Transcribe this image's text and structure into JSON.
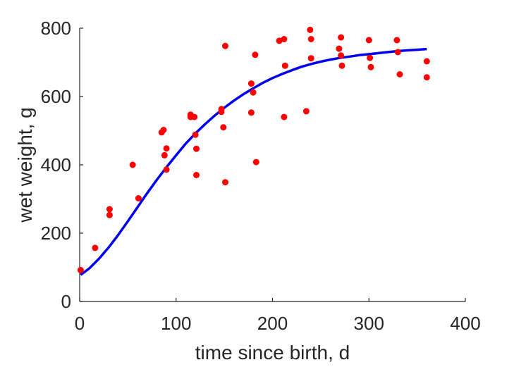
{
  "chart_data": {
    "type": "scatter",
    "title": "",
    "xlabel": "time since birth, d",
    "ylabel": "wet weight, g",
    "xlim": [
      0,
      400
    ],
    "ylim": [
      0,
      800
    ],
    "xticks": [
      "0",
      "100",
      "200",
      "300",
      "400"
    ],
    "yticks": [
      "0",
      "200",
      "400",
      "600",
      "800"
    ],
    "grid": false,
    "legend": "none",
    "colors": {
      "points": "#ff0000",
      "curve": "#0000ee",
      "axis": "#262626"
    },
    "series": [
      {
        "kind": "scatter",
        "points": [
          [
            1,
            92
          ],
          [
            16,
            157
          ],
          [
            31,
            270
          ],
          [
            31,
            253
          ],
          [
            55,
            400
          ],
          [
            61,
            302
          ],
          [
            85,
            495
          ],
          [
            87,
            502
          ],
          [
            88,
            428
          ],
          [
            90,
            448
          ],
          [
            90,
            386
          ],
          [
            115,
            547
          ],
          [
            115,
            540
          ],
          [
            119,
            540
          ],
          [
            120,
            488
          ],
          [
            121,
            447
          ],
          [
            121,
            370
          ],
          [
            147,
            563
          ],
          [
            147,
            555
          ],
          [
            149,
            510
          ],
          [
            151,
            748
          ],
          [
            151,
            349
          ],
          [
            178,
            638
          ],
          [
            178,
            553
          ],
          [
            180,
            612
          ],
          [
            182,
            722
          ],
          [
            183,
            408
          ],
          [
            207,
            763
          ],
          [
            212,
            768
          ],
          [
            212,
            540
          ],
          [
            213,
            690
          ],
          [
            235,
            557
          ],
          [
            239,
            795
          ],
          [
            240,
            768
          ],
          [
            240,
            712
          ],
          [
            269,
            740
          ],
          [
            271,
            773
          ],
          [
            271,
            720
          ],
          [
            272,
            690
          ],
          [
            300,
            765
          ],
          [
            301,
            713
          ],
          [
            302,
            686
          ],
          [
            329,
            765
          ],
          [
            330,
            730
          ],
          [
            332,
            665
          ],
          [
            360,
            703
          ],
          [
            360,
            656
          ]
        ]
      },
      {
        "kind": "line",
        "points": [
          [
            1,
            78
          ],
          [
            10,
            97
          ],
          [
            20,
            125
          ],
          [
            30,
            158
          ],
          [
            40,
            195
          ],
          [
            50,
            235
          ],
          [
            60,
            276
          ],
          [
            70,
            317
          ],
          [
            80,
            356
          ],
          [
            90,
            393
          ],
          [
            100,
            428
          ],
          [
            110,
            462
          ],
          [
            120,
            492
          ],
          [
            130,
            519
          ],
          [
            140,
            544
          ],
          [
            150,
            567
          ],
          [
            160,
            588
          ],
          [
            170,
            607
          ],
          [
            180,
            624
          ],
          [
            190,
            640
          ],
          [
            200,
            654
          ],
          [
            210,
            666
          ],
          [
            220,
            677
          ],
          [
            230,
            687
          ],
          [
            240,
            695
          ],
          [
            250,
            702
          ],
          [
            260,
            708
          ],
          [
            270,
            713
          ],
          [
            280,
            717
          ],
          [
            290,
            721
          ],
          [
            300,
            724
          ],
          [
            310,
            727
          ],
          [
            320,
            730
          ],
          [
            330,
            733
          ],
          [
            340,
            735
          ],
          [
            350,
            737
          ],
          [
            360,
            739
          ]
        ]
      }
    ]
  }
}
